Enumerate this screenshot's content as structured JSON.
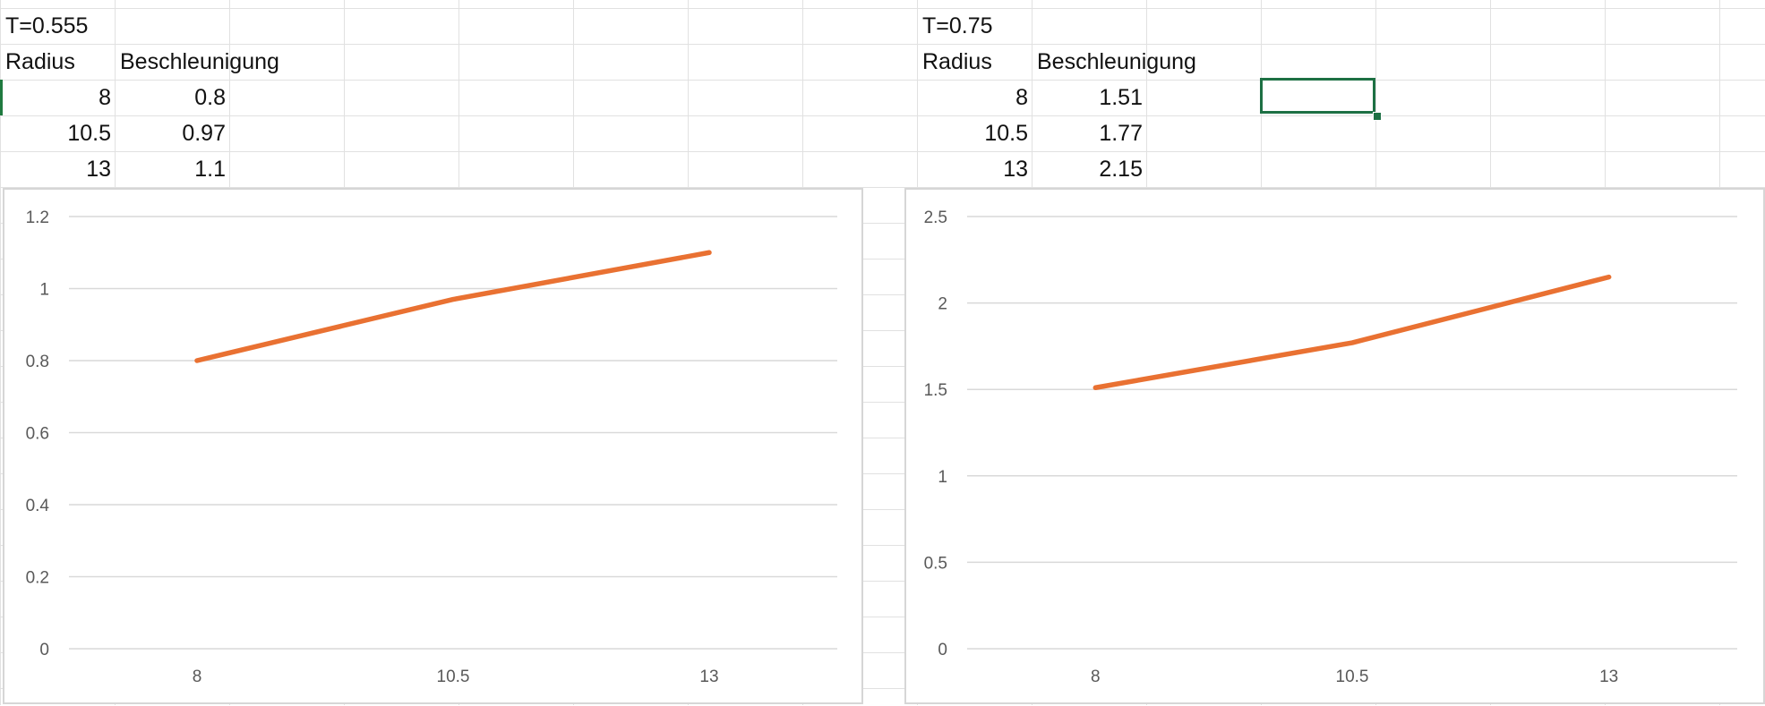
{
  "sheet": {
    "left_table": {
      "title": "T=0.555",
      "headers": [
        "Radius",
        "Beschleunigung"
      ],
      "rows": [
        [
          "8",
          "0.8"
        ],
        [
          "10.5",
          "0.97"
        ],
        [
          "13",
          "1.1"
        ]
      ]
    },
    "right_table": {
      "title": "T=0.75",
      "headers": [
        "Radius",
        "Beschleunigung"
      ],
      "rows": [
        [
          "8",
          "1.51"
        ],
        [
          "10.5",
          "1.77"
        ],
        [
          "13",
          "2.15"
        ]
      ]
    }
  },
  "chart_data": [
    {
      "type": "line",
      "categories": [
        "8",
        "10.5",
        "13"
      ],
      "series": [
        {
          "values": [
            0.8,
            0.97,
            1.1
          ],
          "color": "#e97132"
        }
      ],
      "ylim": [
        0,
        1.2
      ],
      "yticks": [
        0,
        0.2,
        0.4,
        0.6,
        0.8,
        1,
        1.2
      ],
      "grid": true,
      "legend": "none"
    },
    {
      "type": "line",
      "categories": [
        "8",
        "10.5",
        "13"
      ],
      "series": [
        {
          "values": [
            1.51,
            1.77,
            2.15
          ],
          "color": "#e97132"
        }
      ],
      "ylim": [
        0,
        2.5
      ],
      "yticks": [
        0,
        0.5,
        1,
        1.5,
        2,
        2.5
      ],
      "grid": true,
      "legend": "none"
    }
  ]
}
